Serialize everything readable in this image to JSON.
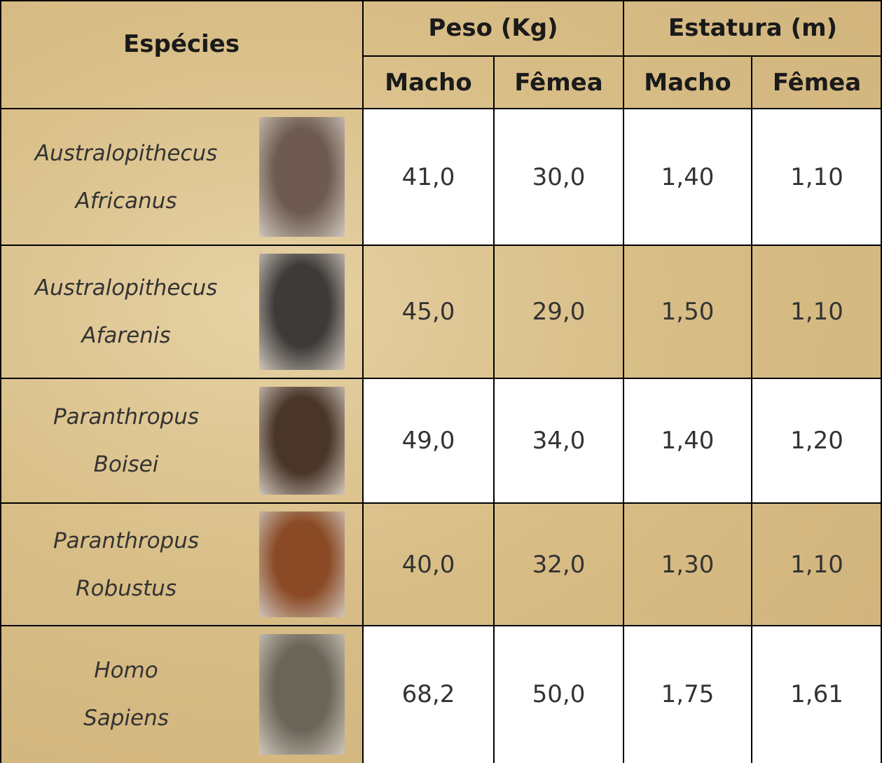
{
  "table": {
    "header": {
      "species": "Espécies",
      "groups": [
        "Peso (Kg)",
        "Estatura (m)"
      ],
      "sub": [
        "Macho",
        "Fêmea",
        "Macho",
        "Fêmea"
      ]
    },
    "rows": [
      {
        "name": [
          "Australopithecus",
          "Africanus"
        ],
        "cells": [
          "41,0",
          "30,0",
          "1,40",
          "1,10"
        ]
      },
      {
        "name": [
          "Australopithecus",
          "Afarenis"
        ],
        "cells": [
          "45,0",
          "29,0",
          "1,50",
          "1,10"
        ]
      },
      {
        "name": [
          "Paranthropus",
          "Boisei"
        ],
        "cells": [
          "49,0",
          "34,0",
          "1,40",
          "1,20"
        ]
      },
      {
        "name": [
          "Paranthropus",
          "Robustus"
        ],
        "cells": [
          "40,0",
          "32,0",
          "1,30",
          "1,10"
        ]
      },
      {
        "name": [
          "Homo",
          "Sapiens"
        ],
        "cells": [
          "68,2",
          "50,0",
          "1,75",
          "1,61"
        ]
      }
    ]
  }
}
